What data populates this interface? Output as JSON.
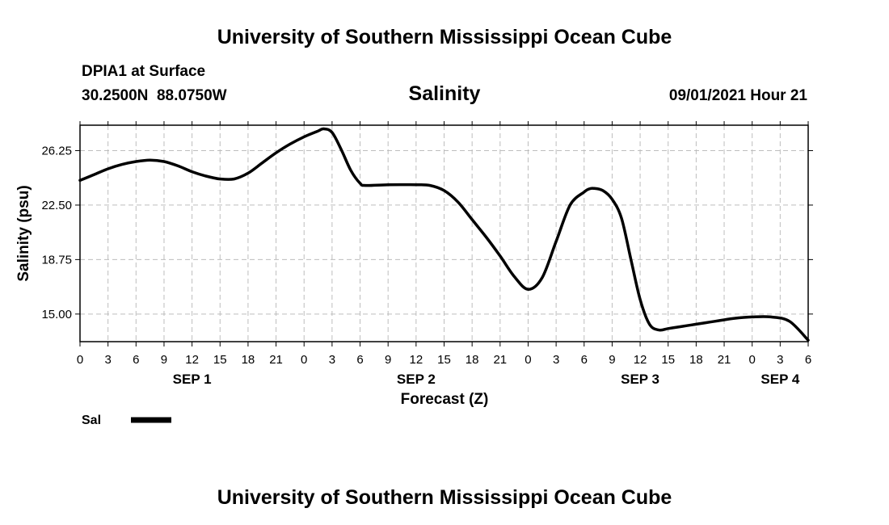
{
  "header": {
    "title": "University of Southern Mississippi Ocean Cube",
    "station": "DPIA1 at Surface",
    "coords": "30.2500N  88.0750W",
    "variable": "Salinity",
    "datetime": "09/01/2021 Hour 21"
  },
  "footer": {
    "title": "University of Southern Mississippi Ocean Cube"
  },
  "chart_data": {
    "type": "line",
    "title": "Salinity",
    "xlabel": "Forecast (Z)",
    "ylabel": "Salinity (psu)",
    "xlim": [
      0,
      78
    ],
    "ylim": [
      13.1,
      28.0
    ],
    "grid": true,
    "legend_position": "bottom-left",
    "x_ticks": [
      0,
      3,
      6,
      9,
      12,
      15,
      18,
      21,
      24,
      27,
      30,
      33,
      36,
      39,
      42,
      45,
      48,
      51,
      54,
      57,
      60,
      63,
      66,
      69,
      72,
      75,
      78
    ],
    "x_tick_labels": [
      "0",
      "3",
      "6",
      "9",
      "12",
      "15",
      "18",
      "21",
      "0",
      "3",
      "6",
      "9",
      "12",
      "15",
      "18",
      "21",
      "0",
      "3",
      "6",
      "9",
      "12",
      "15",
      "18",
      "21",
      "0",
      "3",
      "6"
    ],
    "day_labels": [
      {
        "at": 12,
        "label": "SEP 1"
      },
      {
        "at": 36,
        "label": "SEP 2"
      },
      {
        "at": 60,
        "label": "SEP 3"
      },
      {
        "at": 75,
        "label": "SEP 4"
      }
    ],
    "y_ticks": [
      15.0,
      18.75,
      22.5,
      26.25
    ],
    "y_tick_labels": [
      "15.00",
      "18.75",
      "22.50",
      "26.25"
    ],
    "series": [
      {
        "name": "Sal",
        "color": "#000000",
        "x": [
          0,
          1.5,
          3,
          4.5,
          6,
          7.5,
          9,
          10.5,
          12,
          13.5,
          15,
          16.5,
          18,
          19.5,
          21,
          22.5,
          24,
          25.5,
          26.1,
          27,
          28,
          29,
          30,
          30.6,
          33,
          36,
          37.5,
          39,
          40.5,
          42,
          43.5,
          45,
          46.5,
          48,
          49.5,
          51,
          52.5,
          54,
          54.5,
          55,
          56,
          57,
          58,
          59,
          60,
          61,
          62,
          63,
          64,
          65,
          66,
          67,
          68,
          69,
          70,
          72,
          74,
          76,
          78
        ],
        "y": [
          24.2,
          24.6,
          25.0,
          25.3,
          25.5,
          25.6,
          25.5,
          25.2,
          24.8,
          24.5,
          24.3,
          24.3,
          24.7,
          25.4,
          26.1,
          26.7,
          27.2,
          27.6,
          27.75,
          27.5,
          26.3,
          24.9,
          24.0,
          23.85,
          23.9,
          23.9,
          23.85,
          23.5,
          22.7,
          21.5,
          20.3,
          19.0,
          17.6,
          16.7,
          17.5,
          20.0,
          22.5,
          23.4,
          23.6,
          23.65,
          23.5,
          22.9,
          21.6,
          18.8,
          16.0,
          14.3,
          13.9,
          14.0,
          14.1,
          14.2,
          14.3,
          14.4,
          14.5,
          14.6,
          14.7,
          14.8,
          14.8,
          14.5,
          13.2
        ]
      }
    ]
  }
}
